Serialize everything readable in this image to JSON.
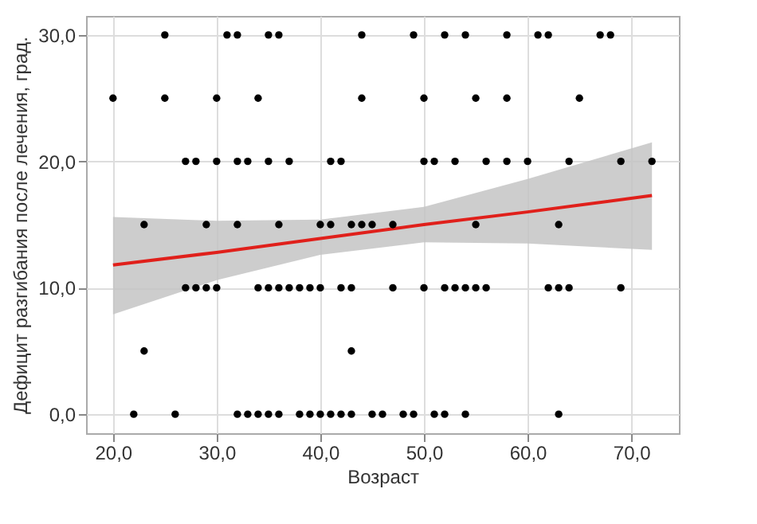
{
  "chart_data": {
    "type": "scatter",
    "xlabel": "Возраст",
    "ylabel": "Дефицит разгибания после лечения, град.",
    "xlim": [
      17.4,
      74.6
    ],
    "ylim": [
      -1.5,
      31.5
    ],
    "xticks": [
      {
        "value": 20,
        "label": "20,0"
      },
      {
        "value": 30,
        "label": "30,0"
      },
      {
        "value": 40,
        "label": "40,0"
      },
      {
        "value": 50,
        "label": "50,0"
      },
      {
        "value": 60,
        "label": "60,0"
      },
      {
        "value": 70,
        "label": "70,0"
      }
    ],
    "yticks": [
      {
        "value": 0,
        "label": "0,0"
      },
      {
        "value": 10,
        "label": "10,0"
      },
      {
        "value": 20,
        "label": "20,0"
      },
      {
        "value": 30,
        "label": "30,0"
      }
    ],
    "grid": true,
    "marker": "circle",
    "series": [
      {
        "color": "#000000",
        "x": [
          25,
          31,
          32,
          35,
          36,
          44,
          49,
          52,
          54,
          58,
          61,
          62,
          67,
          68,
          20,
          25,
          30,
          34,
          44,
          50,
          55,
          58,
          65,
          27,
          28,
          30,
          32,
          33,
          35,
          37,
          41,
          42,
          50,
          51,
          53,
          56,
          58,
          60,
          64,
          69,
          72,
          23,
          29,
          32,
          36,
          40,
          41,
          43,
          44,
          45,
          47,
          55,
          63,
          27,
          28,
          29,
          30,
          34,
          35,
          36,
          37,
          38,
          39,
          40,
          42,
          43,
          47,
          50,
          52,
          53,
          54,
          55,
          56,
          62,
          63,
          64,
          69,
          23,
          43,
          22,
          26,
          32,
          33,
          34,
          35,
          36,
          38,
          39,
          40,
          41,
          42,
          43,
          45,
          46,
          48,
          49,
          51,
          52,
          54,
          63
        ],
        "values": [
          30,
          30,
          30,
          30,
          30,
          30,
          30,
          30,
          30,
          30,
          30,
          30,
          30,
          30,
          25,
          25,
          25,
          25,
          25,
          25,
          25,
          25,
          25,
          20,
          20,
          20,
          20,
          20,
          20,
          20,
          20,
          20,
          20,
          20,
          20,
          20,
          20,
          20,
          20,
          20,
          20,
          15,
          15,
          15,
          15,
          15,
          15,
          15,
          15,
          15,
          15,
          15,
          15,
          10,
          10,
          10,
          10,
          10,
          10,
          10,
          10,
          10,
          10,
          10,
          10,
          10,
          10,
          10,
          10,
          10,
          10,
          10,
          10,
          10,
          10,
          10,
          10,
          5,
          5,
          0,
          0,
          0,
          0,
          0,
          0,
          0,
          0,
          0,
          0,
          0,
          0,
          0,
          0,
          0,
          0,
          0,
          0,
          0,
          0,
          0
        ]
      },
      {
        "type": "line",
        "marker": "none",
        "color": "#e0201b",
        "x": [
          20,
          30,
          40,
          50,
          60,
          72
        ],
        "values": [
          11.8,
          12.8,
          13.9,
          15.0,
          16.0,
          17.3
        ],
        "lower": [
          7.9,
          10.6,
          12.6,
          13.6,
          13.5,
          13.0
        ],
        "upper": [
          15.6,
          15.3,
          15.4,
          16.4,
          18.6,
          21.5
        ]
      }
    ]
  }
}
